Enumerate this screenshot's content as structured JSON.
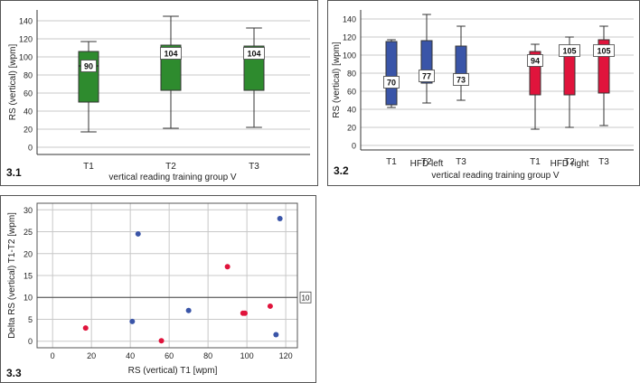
{
  "colors": {
    "green": "#2e8b2e",
    "blue": "#3a55a8",
    "red": "#e0143c",
    "grid": "#c8c8c8"
  },
  "chart_data": [
    {
      "panel_label": "3.1",
      "type": "boxplot",
      "title": "",
      "ylabel": "RS (vertical) [wpm]",
      "xlabel": "vertical reading training group V",
      "ylim": [
        -8,
        152
      ],
      "yticks": [
        0,
        20,
        40,
        60,
        80,
        100,
        120,
        140
      ],
      "categories": [
        "T1",
        "T2",
        "T3"
      ],
      "boxes": [
        {
          "min": 17,
          "q1": 50,
          "median": 90,
          "q3": 106,
          "max": 117,
          "label": "90"
        },
        {
          "min": 21,
          "q1": 63,
          "median": 104,
          "q3": 113,
          "max": 145,
          "label": "104"
        },
        {
          "min": 22,
          "q1": 63,
          "median": 104,
          "q3": 112,
          "max": 132,
          "label": "104"
        }
      ]
    },
    {
      "panel_label": "3.2",
      "type": "boxplot",
      "ylabel": "RS (vertical) [wpm]",
      "xlabel": "vertical reading training group V",
      "ylim": [
        -5,
        150
      ],
      "yticks": [
        0,
        20,
        40,
        60,
        80,
        100,
        120,
        140
      ],
      "categories": [
        "T1",
        "T2",
        "T3",
        "T1",
        "T2",
        "T3"
      ],
      "groups": [
        "HFD left",
        "HFD right"
      ],
      "boxes": [
        {
          "group": "HFD left",
          "min": 42,
          "q1": 45,
          "median": 70,
          "q3": 115,
          "max": 117,
          "label": "70"
        },
        {
          "group": "HFD left",
          "min": 47,
          "q1": 69,
          "median": 77,
          "q3": 116,
          "max": 145,
          "label": "77"
        },
        {
          "group": "HFD left",
          "min": 50,
          "q1": 69,
          "median": 73,
          "q3": 110,
          "max": 132,
          "label": "73"
        },
        {
          "group": "HFD right",
          "min": 18,
          "q1": 56,
          "median": 94,
          "q3": 104,
          "max": 112,
          "label": "94"
        },
        {
          "group": "HFD right",
          "min": 20,
          "q1": 56,
          "median": 105,
          "q3": 107,
          "max": 120,
          "label": "105"
        },
        {
          "group": "HFD right",
          "min": 22,
          "q1": 58,
          "median": 105,
          "q3": 117,
          "max": 132,
          "label": "105"
        }
      ]
    },
    {
      "panel_label": "3.3",
      "type": "scatter",
      "ylabel": "Delta RS (vertical) T1-T2 [wpm]",
      "xlabel": "RS (vertical) T1 [wpm]",
      "xlim": [
        -8,
        126
      ],
      "ylim": [
        -1.5,
        31.5
      ],
      "xticks": [
        0,
        20,
        40,
        60,
        80,
        100,
        120
      ],
      "yticks": [
        0,
        5,
        10,
        15,
        20,
        25,
        30
      ],
      "reference_line": {
        "y": 10,
        "label": "10"
      },
      "series": [
        {
          "name": "HFD left",
          "color": "blue",
          "points": [
            [
              44,
              24.5
            ],
            [
              41,
              4.5
            ],
            [
              70,
              7
            ],
            [
              117,
              28
            ],
            [
              115,
              1.5
            ]
          ]
        },
        {
          "name": "HFD right",
          "color": "red",
          "points": [
            [
              17,
              3
            ],
            [
              56,
              0.1
            ],
            [
              90,
              17
            ],
            [
              98,
              6.4
            ],
            [
              99,
              6.4
            ],
            [
              112,
              8
            ]
          ]
        }
      ]
    }
  ]
}
